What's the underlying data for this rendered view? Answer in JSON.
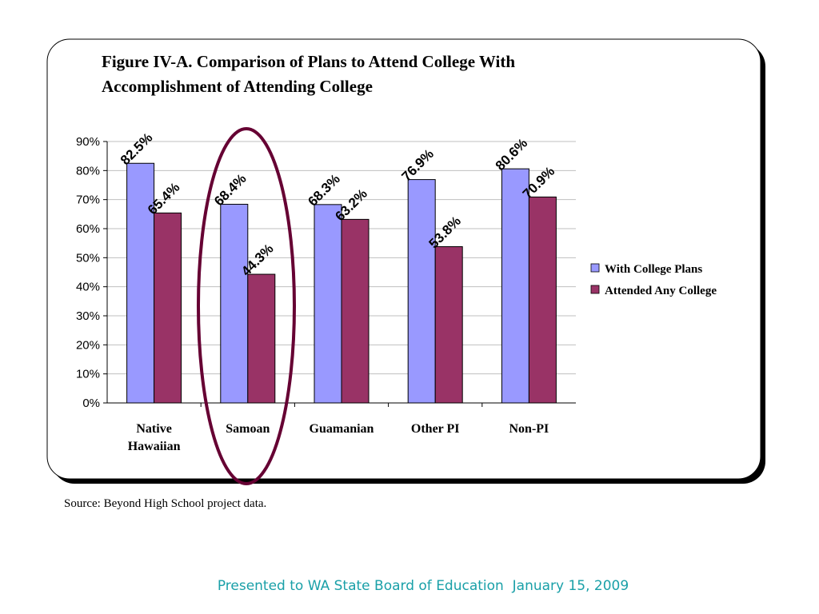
{
  "slide": {
    "source_note": "Source: Beyond High School project data.",
    "footer": "Presented to WA State Board of Education  January 15, 2009"
  },
  "colors": {
    "series_1": "#9999ff",
    "series_2": "#993366",
    "highlight_ellipse": "#660033",
    "footer_text": "#1aa0a8"
  },
  "chart_data": {
    "type": "bar",
    "title": "Figure IV-A. Comparison of Plans to Attend College With Accomplishment of Attending College",
    "title_lines": [
      "Figure IV-A. Comparison of Plans to Attend College With",
      "Accomplishment of Attending College"
    ],
    "categories": [
      [
        "Native",
        "Hawaiian"
      ],
      [
        "Samoan"
      ],
      [
        "Guamanian"
      ],
      [
        "Other PI"
      ],
      [
        "Non-PI"
      ]
    ],
    "series": [
      {
        "name": "With College Plans",
        "values": [
          82.5,
          68.4,
          68.3,
          76.9,
          80.6
        ]
      },
      {
        "name": "Attended Any College",
        "values": [
          65.4,
          44.3,
          63.2,
          53.8,
          70.9
        ]
      }
    ],
    "data_labels": [
      [
        "82.5%",
        "68.4%",
        "68.3%",
        "76.9%",
        "80.6%"
      ],
      [
        "65.4%",
        "44.3%",
        "63.2%",
        "53.8%",
        "70.9%"
      ]
    ],
    "y_ticks": [
      "0%",
      "10%",
      "20%",
      "30%",
      "40%",
      "50%",
      "60%",
      "70%",
      "80%",
      "90%"
    ],
    "ylim": [
      0,
      90
    ],
    "grid": true,
    "legend": "right",
    "highlighted_category": "Samoan"
  }
}
